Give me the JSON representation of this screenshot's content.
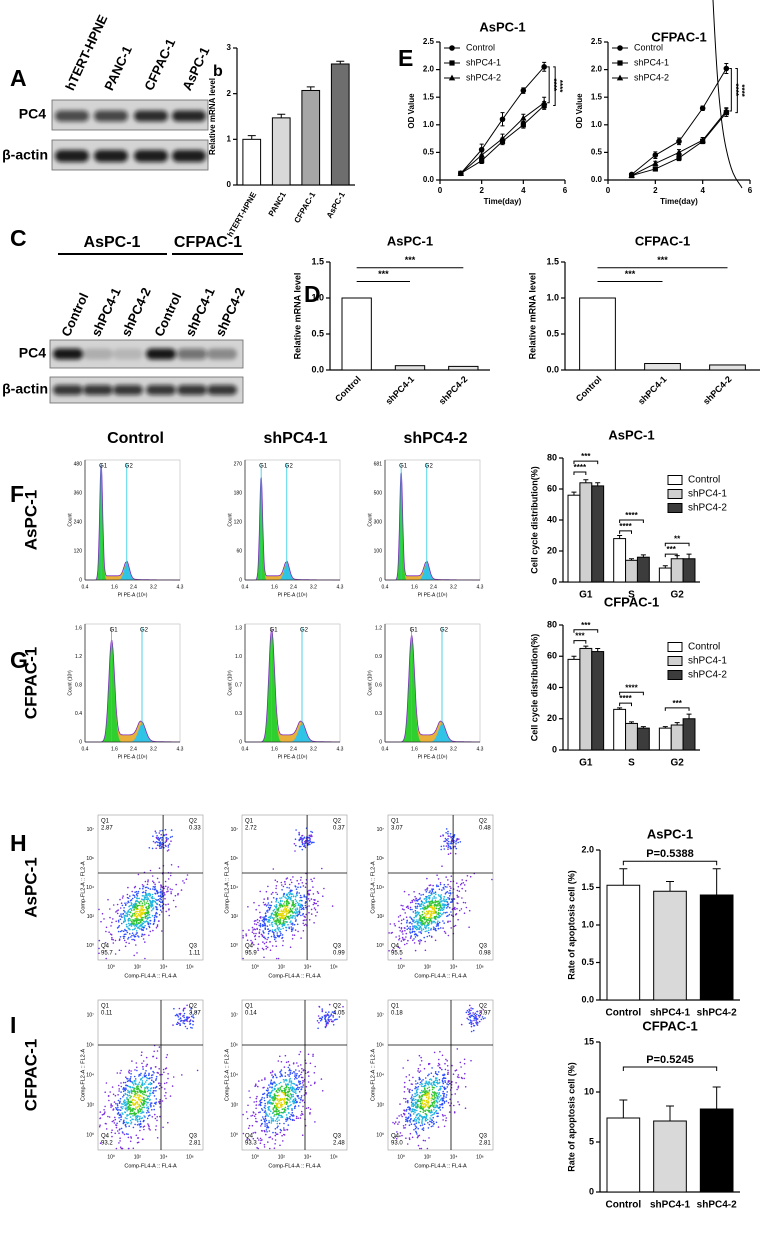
{
  "figure": {
    "letters": [
      "A",
      "b",
      "C",
      "D",
      "E",
      "F",
      "G",
      "H",
      "I"
    ],
    "blot_a": {
      "lanes": [
        "hTERT-HPNE",
        "PANC-1",
        "CFPAC-1",
        "AsPC-1"
      ],
      "rows": [
        "PC4",
        "β-actin"
      ]
    },
    "blot_c": {
      "groups": [
        "AsPC-1",
        "CFPAC-1"
      ],
      "lanes": [
        "Control",
        "shPC4-1",
        "shPC4-2",
        "Control",
        "shPC4-1",
        "shPC4-2"
      ],
      "rows": [
        "PC4",
        "β-actin"
      ]
    },
    "cell_cycle": {
      "columns": [
        "Control",
        "shPC4-1",
        "shPC4-2"
      ],
      "rows": [
        "AsPC-1",
        "CFPAC-1"
      ],
      "peaks": [
        "G1",
        "G2"
      ],
      "xlabel": "PI PE-A (10⁶)",
      "xticks": [
        "0.4",
        "1.6",
        "2.4",
        "3.2",
        "4.3"
      ],
      "ylabels": [
        "Count",
        "Count (10³)"
      ],
      "yticks": [
        [
          [
            "0",
            "120",
            "240",
            "360",
            "480"
          ],
          [
            "0",
            "60",
            "120",
            "180",
            "270"
          ],
          [
            "0",
            "100",
            "300",
            "500",
            "681"
          ]
        ],
        [
          [
            "0",
            "0.4",
            "0.8",
            "1.2",
            "1.6"
          ],
          [
            "0",
            "0.3",
            "0.7",
            "1.0",
            "1.3"
          ],
          [
            "0",
            "0.3",
            "0.6",
            "0.9",
            "1.2"
          ]
        ]
      ]
    },
    "apoptosis": {
      "rows": [
        "AsPC-1",
        "CFPAC-1"
      ],
      "xlabel": "Comp-FL4-A :: FL4-A",
      "ylabel": "Comp-FL2-A :: FL2-A",
      "quadrant_names": [
        "Q1",
        "Q2",
        "Q3",
        "Q4"
      ],
      "quadrants": [
        [
          [
            "2.87",
            "0.33",
            "1.11",
            "95.7"
          ],
          [
            "2.72",
            "0.37",
            "0.99",
            "95.9"
          ],
          [
            "3.07",
            "0.48",
            "0.98",
            "95.5"
          ]
        ],
        [
          [
            "0.11",
            "3.87",
            "2.81",
            "93.2"
          ],
          [
            "0.14",
            "4.05",
            "2.48",
            "93.3"
          ],
          [
            "0.18",
            "3.97",
            "2.81",
            "93.0"
          ]
        ]
      ],
      "xticks": [
        "10⁰",
        "10²",
        "10⁴",
        "10⁶"
      ],
      "yticks": [
        "10⁰",
        "10²",
        "10⁴",
        "10⁶",
        "10⁷"
      ]
    }
  },
  "chart_data": [
    {
      "type": "bar",
      "ylabel": "Relative mRNA level",
      "categories": [
        "hTERT-HPNE",
        "PANC1",
        "CFPAC-1",
        "AsPC-1"
      ],
      "values": [
        1.0,
        1.47,
        2.07,
        2.65
      ],
      "errors": [
        0.08,
        0.08,
        0.08,
        0.06
      ],
      "colors": [
        "#ffffff",
        "#d9d9d9",
        "#a6a6a6",
        "#6e6e6e"
      ],
      "ylim": [
        0,
        3
      ],
      "yticks": [
        0,
        1,
        2,
        3
      ]
    },
    {
      "type": "line",
      "title": "AsPC-1",
      "xlabel": "Time(day)",
      "ylabel": "OD Value",
      "x": [
        1,
        2,
        3,
        4,
        5
      ],
      "series": [
        {
          "name": "Control",
          "marker": "circle",
          "color": "#000000",
          "values": [
            0.12,
            0.55,
            1.1,
            1.62,
            2.05
          ],
          "errors": [
            0.02,
            0.1,
            0.12,
            0.05,
            0.08
          ]
        },
        {
          "name": "shPC4-1",
          "marker": "square",
          "color": "#000000",
          "values": [
            0.12,
            0.35,
            0.7,
            1.0,
            1.35
          ],
          "errors": [
            0.02,
            0.05,
            0.06,
            0.06,
            0.07
          ]
        },
        {
          "name": "shPC4-2",
          "marker": "triangle",
          "color": "#000000",
          "values": [
            0.12,
            0.45,
            0.75,
            1.12,
            1.4
          ],
          "errors": [
            0.02,
            0.06,
            0.08,
            0.07,
            0.1
          ]
        }
      ],
      "xlim": [
        0,
        6
      ],
      "xticks": [
        0,
        2,
        4,
        6
      ],
      "ylim": [
        0,
        2.5
      ],
      "yticks": [
        {
          "value": 0,
          "label": "0.0"
        },
        {
          "value": 0.5,
          "label": "0.5"
        },
        {
          "value": 1,
          "label": "1.0"
        },
        {
          "value": 1.5,
          "label": "1.5"
        },
        {
          "value": 2,
          "label": "2.0"
        },
        {
          "value": 2.5,
          "label": "2.5"
        }
      ],
      "annotations": [
        "****",
        "****"
      ]
    },
    {
      "type": "line",
      "title": "CFPAC-1",
      "xlabel": "Time(day)",
      "ylabel": "OD Value",
      "x": [
        1,
        2,
        3,
        4,
        5
      ],
      "series": [
        {
          "name": "Control",
          "marker": "circle",
          "color": "#000000",
          "values": [
            0.1,
            0.45,
            0.7,
            1.3,
            2.02
          ],
          "errors": [
            0.02,
            0.06,
            0.06,
            0.04,
            0.09
          ]
        },
        {
          "name": "shPC4-1",
          "marker": "square",
          "color": "#000000",
          "values": [
            0.08,
            0.2,
            0.4,
            0.7,
            1.22
          ],
          "errors": [
            0.02,
            0.03,
            0.05,
            0.04,
            0.07
          ]
        },
        {
          "name": "shPC4-2",
          "marker": "triangle",
          "color": "#000000",
          "values": [
            0.08,
            0.3,
            0.5,
            0.72,
            1.25
          ],
          "errors": [
            0.02,
            0.04,
            0.05,
            0.05,
            0.06
          ]
        }
      ],
      "xlim": [
        0,
        6
      ],
      "xticks": [
        0,
        2,
        4,
        6
      ],
      "ylim": [
        0,
        2.5
      ],
      "yticks": [
        {
          "value": 0,
          "label": "0.0"
        },
        {
          "value": 0.5,
          "label": "0.5"
        },
        {
          "value": 1,
          "label": "1.0"
        },
        {
          "value": 1.5,
          "label": "1.5"
        },
        {
          "value": 2,
          "label": "2.0"
        },
        {
          "value": 2.5,
          "label": "2.5"
        }
      ],
      "annotations": [
        "****",
        "****"
      ]
    },
    {
      "type": "bar",
      "title": "AsPC-1",
      "ylabel": "Relative mRNA level",
      "categories": [
        "Control",
        "shPC4-1",
        "shPC4-2"
      ],
      "values": [
        1.0,
        0.06,
        0.05
      ],
      "colors": [
        "#ffffff",
        "#e3e3e3",
        "#e3e3e3"
      ],
      "ylim": [
        0,
        1.5
      ],
      "yticks": [
        {
          "value": 0,
          "label": "0.0"
        },
        {
          "value": 0.5,
          "label": "0.5"
        },
        {
          "value": 1,
          "label": "1.0"
        },
        {
          "value": 1.5,
          "label": "1.5"
        }
      ],
      "annotations": [
        "***",
        "***"
      ]
    },
    {
      "type": "bar",
      "title": "CFPAC-1",
      "ylabel": "Relative mRNA level",
      "categories": [
        "Control",
        "shPC4-1",
        "shPC4-2"
      ],
      "values": [
        1.0,
        0.09,
        0.07
      ],
      "colors": [
        "#ffffff",
        "#e3e3e3",
        "#e3e3e3"
      ],
      "ylim": [
        0,
        1.5
      ],
      "yticks": [
        {
          "value": 0,
          "label": "0.0"
        },
        {
          "value": 0.5,
          "label": "0.5"
        },
        {
          "value": 1,
          "label": "1.0"
        },
        {
          "value": 1.5,
          "label": "1.5"
        }
      ],
      "annotations": [
        "***",
        "***"
      ]
    },
    {
      "type": "bar",
      "title": "AsPC-1",
      "ylabel": "Cell cycle distribution(%)",
      "categories": [
        "G1",
        "S",
        "G2"
      ],
      "series": [
        {
          "name": "Control",
          "color": "#ffffff",
          "values": [
            56,
            28,
            9
          ],
          "errors": [
            2,
            2,
            1.5
          ]
        },
        {
          "name": "shPC4-1",
          "color": "#d0d0d0",
          "values": [
            64,
            14,
            15
          ],
          "errors": [
            2,
            1,
            2
          ]
        },
        {
          "name": "shPC4-2",
          "color": "#3c3c3c",
          "values": [
            62,
            16,
            15
          ],
          "errors": [
            2,
            1.5,
            3
          ]
        }
      ],
      "ylim": [
        0,
        80
      ],
      "yticks": [
        0,
        20,
        40,
        60,
        80
      ],
      "legend": "upper right",
      "annotations": [
        "****",
        "***",
        "****",
        "****",
        "***",
        "**"
      ]
    },
    {
      "type": "bar",
      "title": "CFPAC-1",
      "ylabel": "Cell cycle distribution(%)",
      "categories": [
        "G1",
        "S",
        "G2"
      ],
      "series": [
        {
          "name": "Control",
          "color": "#ffffff",
          "values": [
            58,
            26,
            14
          ],
          "errors": [
            2,
            1,
            1
          ]
        },
        {
          "name": "shPC4-1",
          "color": "#d0d0d0",
          "values": [
            65,
            17,
            16
          ],
          "errors": [
            1.5,
            1,
            1.5
          ]
        },
        {
          "name": "shPC4-2",
          "color": "#3c3c3c",
          "values": [
            63,
            14,
            20
          ],
          "errors": [
            2,
            1,
            3
          ]
        }
      ],
      "ylim": [
        0,
        80
      ],
      "yticks": [
        0,
        20,
        40,
        60,
        80
      ],
      "legend": "upper right",
      "annotations": [
        "***",
        "***",
        "****",
        "****",
        "***"
      ]
    },
    {
      "type": "bar",
      "title": "AsPC-1",
      "ylabel": "Rate of apoptosis cell  (%)",
      "categories": [
        "Control",
        "shPC4-1",
        "shPC4-2"
      ],
      "values": [
        1.53,
        1.45,
        1.4
      ],
      "errors": [
        0.22,
        0.13,
        0.35
      ],
      "colors": [
        "#ffffff",
        "#d9d9d9",
        "#000000"
      ],
      "ylim": [
        0,
        2
      ],
      "yticks": [
        {
          "value": 0,
          "label": "0.0"
        },
        {
          "value": 0.5,
          "label": "0.5"
        },
        {
          "value": 1,
          "label": "1.0"
        },
        {
          "value": 1.5,
          "label": "1.5"
        },
        {
          "value": 2,
          "label": "2.0"
        }
      ],
      "annotations": [
        "P=0.5388"
      ]
    },
    {
      "type": "bar",
      "title": "CFPAC-1",
      "ylabel": "Rate of apoptosis cell  (%)",
      "categories": [
        "Control",
        "shPC4-1",
        "shPC4-2"
      ],
      "values": [
        7.4,
        7.1,
        8.3
      ],
      "errors": [
        1.8,
        1.5,
        2.2
      ],
      "colors": [
        "#ffffff",
        "#d9d9d9",
        "#000000"
      ],
      "ylim": [
        0,
        15
      ],
      "yticks": [
        0,
        5,
        10,
        15
      ],
      "annotations": [
        "P=0.5245"
      ]
    }
  ]
}
